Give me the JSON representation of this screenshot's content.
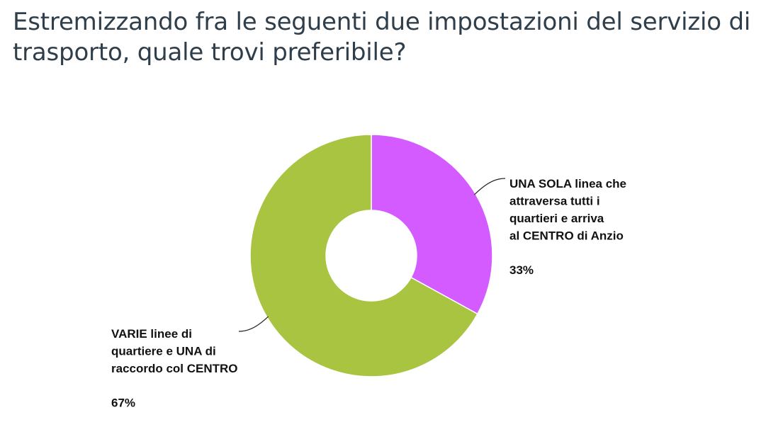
{
  "chart_data": {
    "type": "pie",
    "title": "Estremizzando fra le seguenti due impostazioni del servizio di trasporto, quale trovi preferibile?",
    "donut": true,
    "slices": [
      {
        "label_lines": [
          "UNA SOLA linea che",
          "attraversa tutti i",
          "quartieri e arriva",
          "al CENTRO di Anzio"
        ],
        "value": 33,
        "percent_label": "33%",
        "color": "#d35bff"
      },
      {
        "label_lines": [
          "VARIE linee di",
          "quartiere e UNA di",
          "raccordo col CENTRO"
        ],
        "value": 67,
        "percent_label": "67%",
        "color": "#a8c440"
      }
    ]
  }
}
